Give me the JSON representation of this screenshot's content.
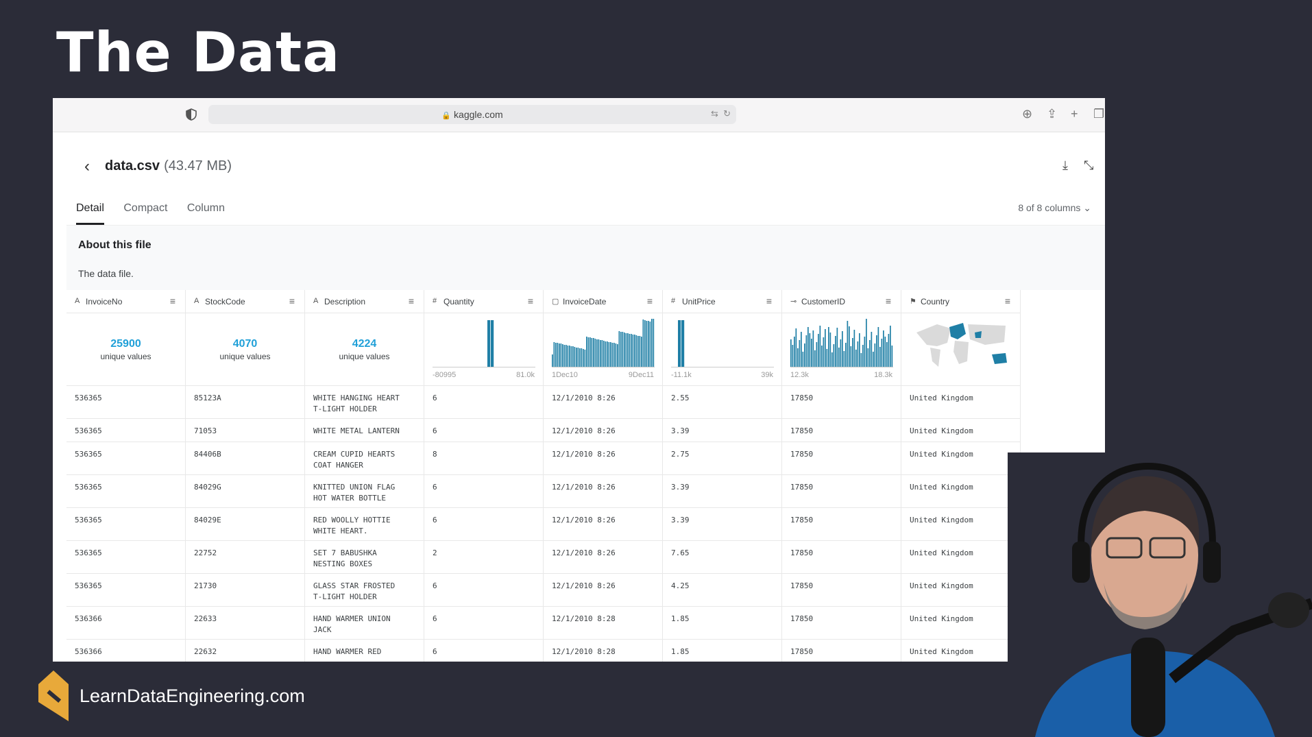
{
  "slide": {
    "title": "The Data",
    "brand": "LearnDataEngineering.com"
  },
  "browser": {
    "url": "kaggle.com"
  },
  "file": {
    "name": "data.csv",
    "size": "(43.47 MB)",
    "tabs": [
      "Detail",
      "Compact",
      "Column"
    ],
    "active_tab": "Detail",
    "columns_selector": "8 of 8 columns",
    "about_title": "About this file",
    "about_text": "The data file."
  },
  "columns": [
    {
      "name": "InvoiceNo",
      "type_icon": "string-icon",
      "summary": {
        "kind": "unique",
        "value": "25900",
        "label": "unique values"
      }
    },
    {
      "name": "StockCode",
      "type_icon": "string-icon",
      "summary": {
        "kind": "unique",
        "value": "4070",
        "label": "unique values"
      }
    },
    {
      "name": "Description",
      "type_icon": "string-icon",
      "summary": {
        "kind": "unique",
        "value": "4224",
        "label": "unique values"
      }
    },
    {
      "name": "Quantity",
      "type_icon": "hash-icon",
      "summary": {
        "kind": "histogram",
        "min": "-80995",
        "max": "81.0k"
      }
    },
    {
      "name": "InvoiceDate",
      "type_icon": "calendar-icon",
      "summary": {
        "kind": "histogram",
        "min": "1Dec10",
        "max": "9Dec11"
      }
    },
    {
      "name": "UnitPrice",
      "type_icon": "hash-icon",
      "summary": {
        "kind": "histogram",
        "min": "-11.1k",
        "max": "39k"
      }
    },
    {
      "name": "CustomerID",
      "type_icon": "id-icon",
      "summary": {
        "kind": "histogram",
        "min": "12.3k",
        "max": "18.3k"
      }
    },
    {
      "name": "Country",
      "type_icon": "flag-icon",
      "summary": {
        "kind": "map"
      }
    }
  ],
  "rows": [
    [
      "536365",
      "85123A",
      "WHITE HANGING HEART\nT-LIGHT HOLDER",
      "6",
      "12/1/2010 8:26",
      "2.55",
      "17850",
      "United Kingdom"
    ],
    [
      "536365",
      "71053",
      "WHITE METAL LANTERN",
      "6",
      "12/1/2010 8:26",
      "3.39",
      "17850",
      "United Kingdom"
    ],
    [
      "536365",
      "84406B",
      "CREAM CUPID HEARTS\nCOAT HANGER",
      "8",
      "12/1/2010 8:26",
      "2.75",
      "17850",
      "United Kingdom"
    ],
    [
      "536365",
      "84029G",
      "KNITTED UNION FLAG\nHOT WATER BOTTLE",
      "6",
      "12/1/2010 8:26",
      "3.39",
      "17850",
      "United Kingdom"
    ],
    [
      "536365",
      "84029E",
      "RED WOOLLY HOTTIE\nWHITE HEART.",
      "6",
      "12/1/2010 8:26",
      "3.39",
      "17850",
      "United Kingdom"
    ],
    [
      "536365",
      "22752",
      "SET 7 BABUSHKA\nNESTING BOXES",
      "2",
      "12/1/2010 8:26",
      "7.65",
      "17850",
      "United Kingdom"
    ],
    [
      "536365",
      "21730",
      "GLASS STAR FROSTED\nT-LIGHT HOLDER",
      "6",
      "12/1/2010 8:26",
      "4.25",
      "17850",
      "United Kingdom"
    ],
    [
      "536366",
      "22633",
      "HAND WARMER UNION\nJACK",
      "6",
      "12/1/2010 8:28",
      "1.85",
      "17850",
      "United Kingdom"
    ],
    [
      "536366",
      "22632",
      "HAND WARMER RED",
      "6",
      "12/1/2010 8:28",
      "1.85",
      "17850",
      "United Kingdom"
    ]
  ],
  "colors": {
    "accent": "#20a0d8",
    "bar": "#1f7fa6",
    "background": "#2b2c38"
  }
}
